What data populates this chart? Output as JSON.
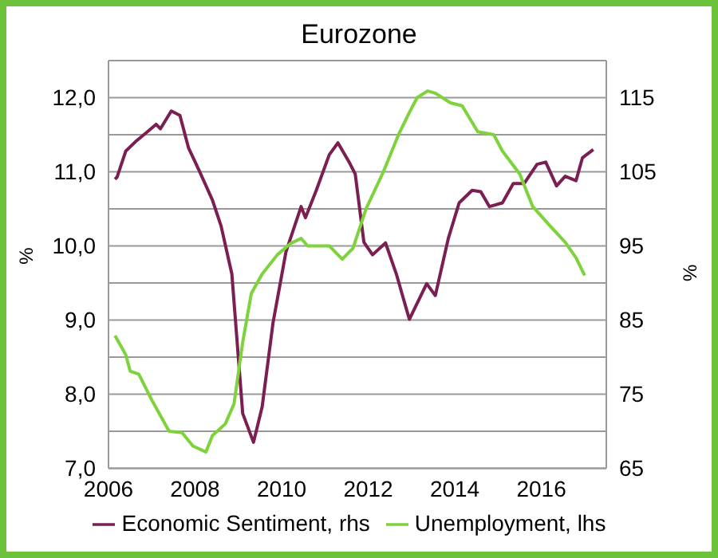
{
  "chart_data": {
    "type": "line",
    "title": "Eurozone",
    "ylabel": "%",
    "y2label": "%",
    "xlim": [
      2006,
      2017.5
    ],
    "xticks": [
      2006,
      2008,
      2010,
      2012,
      2014,
      2016
    ],
    "ylim": [
      7,
      12.5
    ],
    "yticks": [
      {
        "value": 7,
        "label": "7,0"
      },
      {
        "value": 7.5,
        "label": null
      },
      {
        "value": 8,
        "label": "8,0"
      },
      {
        "value": 8.5,
        "label": null
      },
      {
        "value": 9,
        "label": "9,0"
      },
      {
        "value": 9.5,
        "label": null
      },
      {
        "value": 10,
        "label": "10,0"
      },
      {
        "value": 10.5,
        "label": null
      },
      {
        "value": 11,
        "label": "11,0"
      },
      {
        "value": 11.5,
        "label": null
      },
      {
        "value": 12,
        "label": "12,0"
      },
      {
        "value": 12.5,
        "label": null
      }
    ],
    "y2lim": [
      65,
      120
    ],
    "y2ticks": [
      65,
      75,
      85,
      95,
      105,
      115
    ],
    "grid": "y",
    "legend": "bottom",
    "marker": "none",
    "line_style": "solid",
    "series": [
      {
        "name": "Economic Sentiment, rhs",
        "color": "#7b1f52",
        "axis": "y2",
        "x": [
          2006.15,
          2006.2,
          2006.4,
          2006.65,
          2006.9,
          2007.1,
          2007.2,
          2007.45,
          2007.65,
          2007.85,
          2008.1,
          2008.4,
          2008.6,
          2008.85,
          2009.1,
          2009.35,
          2009.55,
          2009.8,
          2010.1,
          2010.45,
          2010.55,
          2010.8,
          2011.1,
          2011.3,
          2011.55,
          2011.7,
          2011.9,
          2012.1,
          2012.4,
          2012.65,
          2012.95,
          2013.35,
          2013.55,
          2013.85,
          2014.1,
          2014.4,
          2014.6,
          2014.8,
          2015.1,
          2015.35,
          2015.6,
          2015.9,
          2016.1,
          2016.35,
          2016.55,
          2016.8,
          2016.95,
          2017.2
        ],
        "values": [
          104,
          104.3,
          107.8,
          109.2,
          110.4,
          111.4,
          110.8,
          113.2,
          112.6,
          108.2,
          105.1,
          101.2,
          97.7,
          91.2,
          72.4,
          68.5,
          73.3,
          84.6,
          94.2,
          100.3,
          98.8,
          102.5,
          107.3,
          108.9,
          106.4,
          104.7,
          95.5,
          93.8,
          95.4,
          91.2,
          85.1,
          89.9,
          88.3,
          96,
          100.8,
          102.5,
          102.3,
          100.3,
          100.8,
          103.4,
          103.4,
          106,
          106.3,
          103.1,
          104.4,
          103.8,
          106.9,
          108
        ]
      },
      {
        "name": "Unemployment, lhs",
        "color": "#7ed23c",
        "x": [
          2006.15,
          2006.4,
          2006.5,
          2006.7,
          2007,
          2007.4,
          2007.7,
          2007.95,
          2008.25,
          2008.4,
          2008.7,
          2008.9,
          2009.1,
          2009.3,
          2009.55,
          2009.9,
          2010.2,
          2010.45,
          2010.6,
          2011.1,
          2011.4,
          2011.65,
          2011.95,
          2012.35,
          2012.7,
          2012.95,
          2013.13,
          2013.37,
          2013.55,
          2013.9,
          2014.17,
          2014.53,
          2014.9,
          2015.1,
          2015.5,
          2015.8,
          2016.2,
          2016.55,
          2016.8,
          2017
        ],
        "values": [
          8.79,
          8.53,
          8.31,
          8.27,
          7.92,
          7.5,
          7.48,
          7.3,
          7.22,
          7.44,
          7.6,
          7.87,
          8.7,
          9.36,
          9.62,
          9.88,
          10.03,
          10.1,
          10,
          10,
          9.82,
          9.97,
          10.5,
          11,
          11.5,
          11.8,
          12,
          12.09,
          12.06,
          11.93,
          11.89,
          11.54,
          11.5,
          11.28,
          10.97,
          10.53,
          10.27,
          10.05,
          9.84,
          9.6
        ]
      }
    ]
  }
}
